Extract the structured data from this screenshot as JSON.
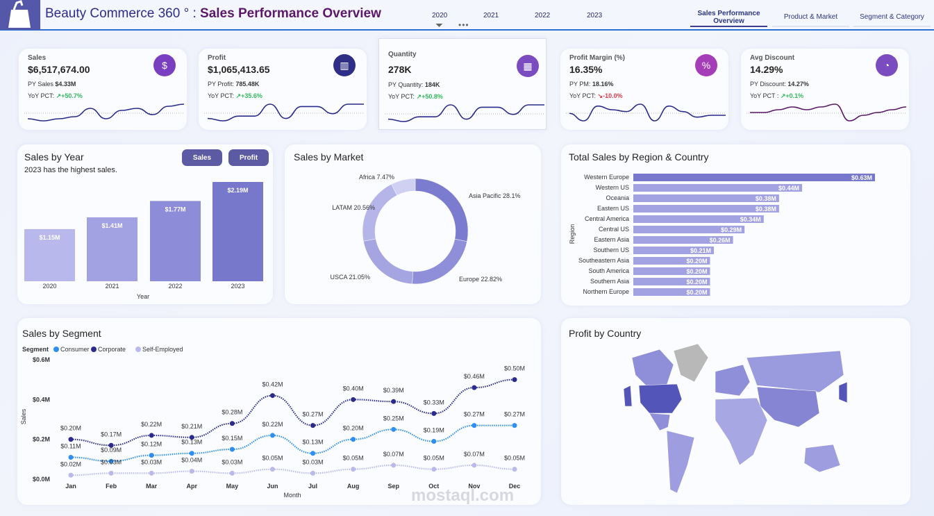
{
  "header": {
    "title_prefix": "Beauty Commerce 360 ° : ",
    "title_main": "Sales Performance Overview",
    "years": [
      "2020",
      "2021",
      "2022",
      "2023"
    ],
    "tabs": [
      {
        "label": "Sales Performance Overview",
        "active": true
      },
      {
        "label": "Product & Market",
        "active": false
      },
      {
        "label": "Segment & Category",
        "active": false
      }
    ]
  },
  "kpis": [
    {
      "label": "Sales",
      "value": "$6,517,674.00",
      "py_label": "PY Sales ",
      "py_value": "$4.33M",
      "yoy_label": "YoY PCT: ",
      "yoy_value": "↗+50.7%",
      "positive": true,
      "icon": "dollar-growth-icon",
      "icon_color": "#7a3fc0",
      "trend": [
        3,
        2,
        3,
        4,
        8,
        3,
        7,
        8,
        5,
        9,
        10
      ],
      "trend_color": "#2a2a8a"
    },
    {
      "label": "Profit",
      "value": "$1,065,413.65",
      "py_label": "PY Profit: ",
      "py_value": "785.48K",
      "yoy_label": "YoY PCT: ",
      "yoy_value": "↗+35.6%",
      "positive": true,
      "icon": "bar-chart-icon",
      "icon_color": "#2e2e86",
      "trend": [
        3,
        2,
        4,
        4,
        9,
        3,
        8,
        8,
        5,
        9,
        9
      ],
      "trend_color": "#2a2a8a"
    },
    {
      "label": "Quantity",
      "value": "278K",
      "py_label": "PY Quantity: ",
      "py_value": "184K",
      "yoy_label": "YoY PCT: ",
      "yoy_value": "↗+50.8%",
      "positive": true,
      "icon": "boxes-icon",
      "icon_color": "#7a4cc0",
      "trend": [
        3,
        2,
        4,
        4,
        9,
        3,
        8,
        8,
        5,
        9,
        9
      ],
      "trend_color": "#2a2a8a"
    },
    {
      "label": "Profit Margin (%)",
      "value": "16.35%",
      "py_label": "PY PM: ",
      "py_value": "18.16%",
      "yoy_label": "YoY PCT: ",
      "yoy_value": "↘-10.0%",
      "positive": false,
      "icon": "percent-up-icon",
      "icon_color": "#a53cb8",
      "trend": [
        5,
        1,
        9,
        7,
        6,
        10,
        1,
        9,
        6,
        3,
        4,
        4
      ],
      "trend_color": "#2a2a8a"
    },
    {
      "label": "Avg Discount",
      "value": "14.29%",
      "py_label": "PY Discount: ",
      "py_value": "14.27%",
      "yoy_label": "YoY PCT : ",
      "yoy_value": "↗+0.1%",
      "positive": true,
      "icon": "discount-pie-icon",
      "icon_color": "#7a4cc0",
      "trend": [
        6,
        6,
        7,
        8,
        7,
        8,
        9,
        3,
        5,
        6,
        7,
        8
      ],
      "trend_color": "#5a1868"
    }
  ],
  "sales_by_year": {
    "title": "Sales by Year",
    "subtitle": "2023 has the highest sales.",
    "buttons": [
      "Sales",
      "Profit"
    ],
    "chart_data": {
      "type": "bar",
      "categories": [
        "2020",
        "2021",
        "2022",
        "2023"
      ],
      "values": [
        1.15,
        1.41,
        1.77,
        2.19
      ],
      "labels": [
        "$1.15M",
        "$1.41M",
        "$1.77M",
        "$2.19M"
      ],
      "xlabel": "Year",
      "unit": "$M",
      "colors": [
        "#b8b8ec",
        "#a2a2e2",
        "#8c8cd8",
        "#7777cb"
      ]
    }
  },
  "sales_by_market": {
    "title": "Sales by Market",
    "chart_data": {
      "type": "pie",
      "donut": true,
      "slices": [
        {
          "name": "Asia Pacific",
          "value": 28.1,
          "label": "Asia Pacific 28.1%",
          "color": "#7b7bd0"
        },
        {
          "name": "Europe",
          "value": 22.82,
          "label": "Europe 22.82%",
          "color": "#8f8fd9"
        },
        {
          "name": "USCA",
          "value": 21.05,
          "label": "USCA 21.05%",
          "color": "#a5a5e2"
        },
        {
          "name": "LATAM",
          "value": 20.56,
          "label": "LATAM 20.56%",
          "color": "#b5b5e9"
        },
        {
          "name": "Africa",
          "value": 7.47,
          "label": "Africa 7.47%",
          "color": "#d0d0f3"
        }
      ]
    }
  },
  "region": {
    "title": "Total Sales by Region & Country",
    "chart_data": {
      "type": "bar",
      "orientation": "horizontal",
      "ylabel": "Region",
      "categories": [
        "Western Europe",
        "Western US",
        "Oceania",
        "Eastern US",
        "Central America",
        "Central US",
        "Eastern Asia",
        "Southern US",
        "Southeastern Asia",
        "South America",
        "Southern Asia",
        "Northern Europe"
      ],
      "values": [
        0.63,
        0.44,
        0.38,
        0.38,
        0.34,
        0.29,
        0.26,
        0.21,
        0.2,
        0.2,
        0.2,
        0.2
      ],
      "labels": [
        "$0.63M",
        "$0.44M",
        "$0.38M",
        "$0.38M",
        "$0.34M",
        "$0.29M",
        "$0.26M",
        "$0.21M",
        "$0.20M",
        "$0.20M",
        "$0.20M",
        "$0.20M"
      ]
    }
  },
  "segment": {
    "title": "Sales by Segment",
    "chart_data": {
      "type": "line",
      "legend_title": "Segment",
      "xlabel": "Month",
      "ylabel": "Sales",
      "ylim": [
        0,
        0.6
      ],
      "yticks": [
        "$0.0M",
        "$0.2M",
        "$0.4M",
        "$0.6M"
      ],
      "categories": [
        "Jan",
        "Feb",
        "Mar",
        "Apr",
        "May",
        "Jun",
        "Jul",
        "Aug",
        "Sep",
        "Oct",
        "Nov",
        "Dec"
      ],
      "series": [
        {
          "name": "Consumer",
          "color": "#2e8ff0",
          "values": [
            0.11,
            0.09,
            0.12,
            0.13,
            0.15,
            0.22,
            0.13,
            0.2,
            0.25,
            0.19,
            0.27,
            0.27
          ]
        },
        {
          "name": "Corporate",
          "color": "#2b2b8c",
          "values": [
            0.2,
            0.17,
            0.22,
            0.21,
            0.28,
            0.42,
            0.27,
            0.4,
            0.39,
            0.33,
            0.46,
            0.5
          ]
        },
        {
          "name": "Self-Employed",
          "color": "#b9b9ec",
          "values": [
            0.02,
            0.03,
            0.03,
            0.04,
            0.03,
            0.05,
            0.03,
            0.05,
            0.07,
            0.05,
            0.07,
            0.05
          ]
        }
      ]
    }
  },
  "profit_map": {
    "title": "Profit by Country"
  },
  "watermark": {
    "text": "mostaql.com"
  }
}
